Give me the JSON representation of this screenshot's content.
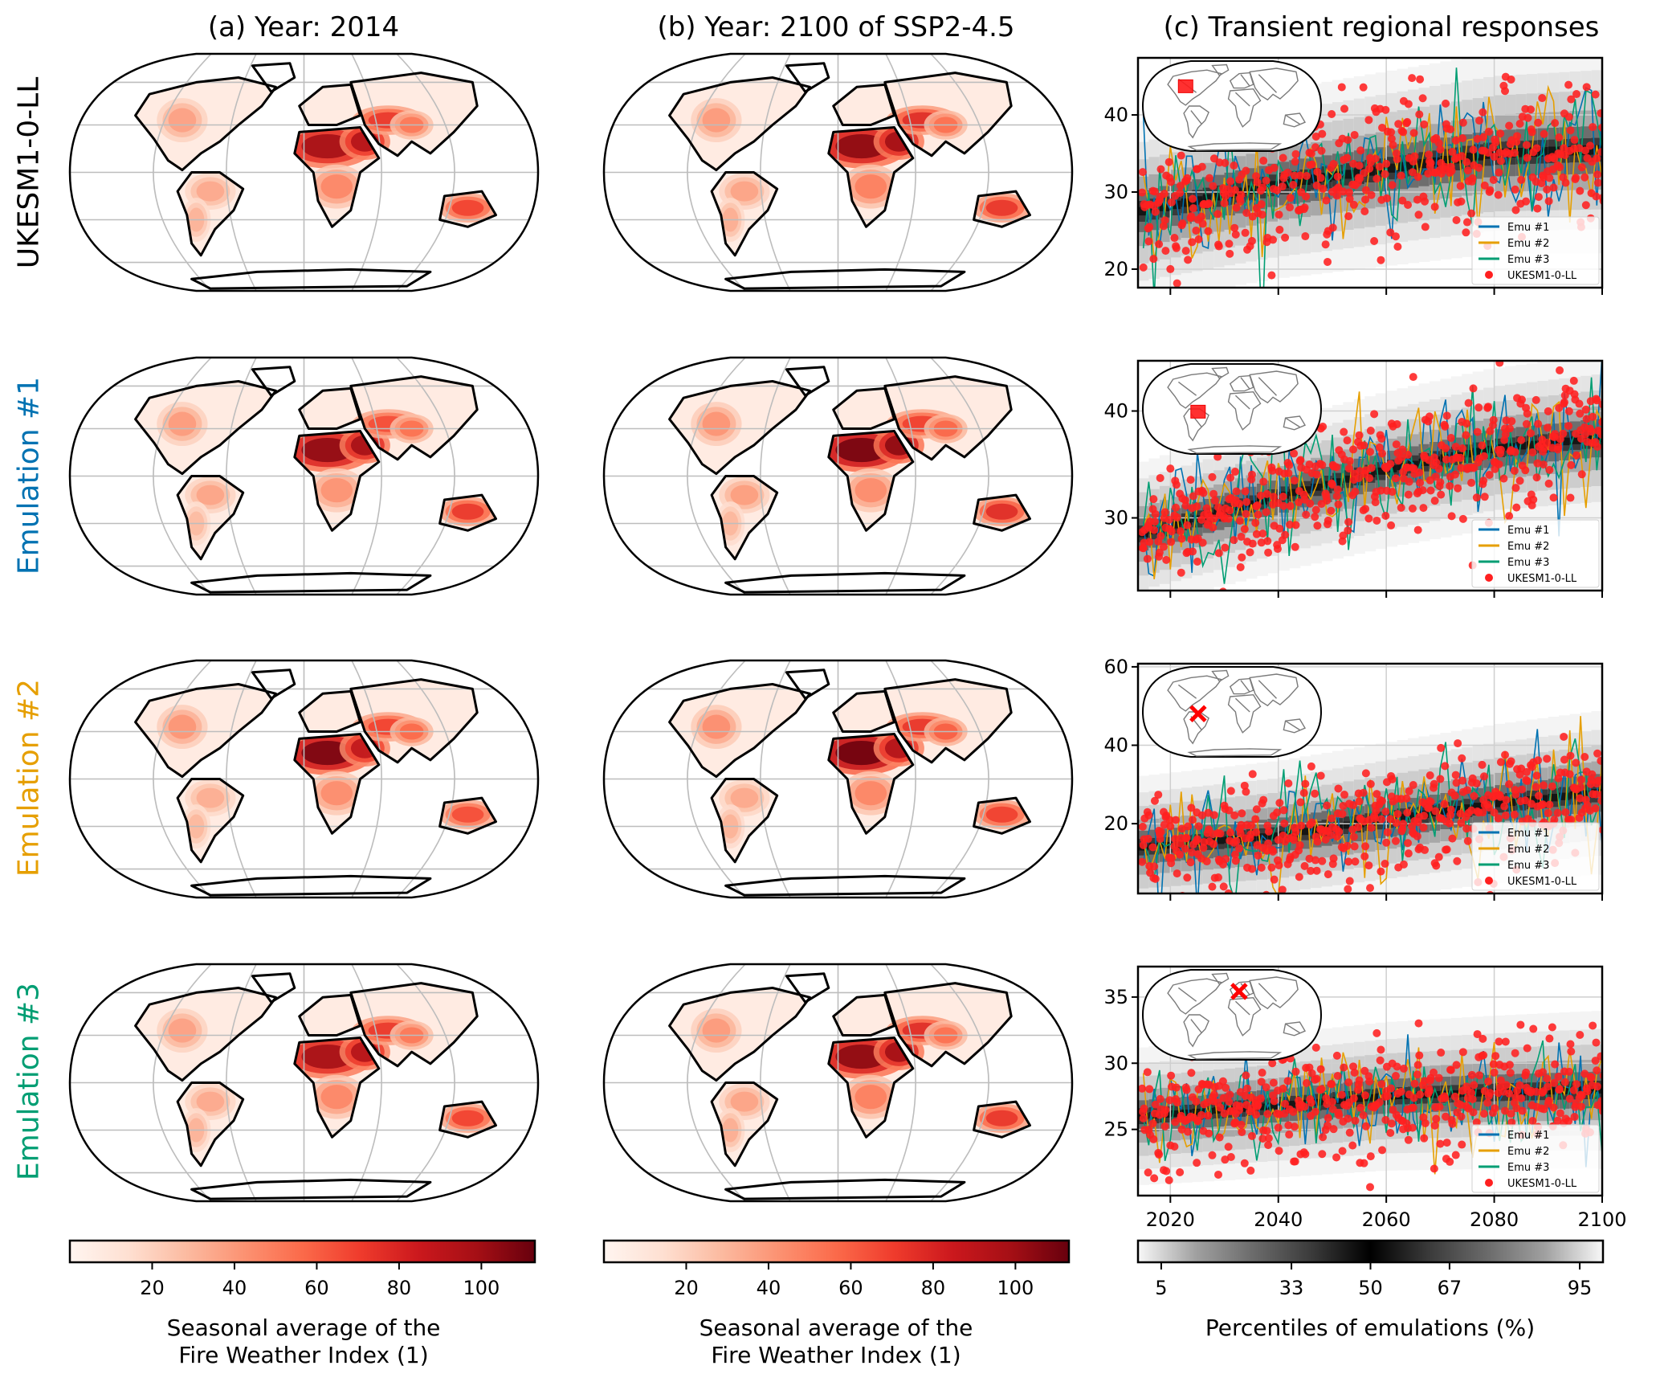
{
  "column_titles": {
    "a": "(a) Year: 2014",
    "b": "(b) Year: 2100 of SSP2-4.5",
    "c": "(c) Transient regional responses"
  },
  "row_labels": [
    {
      "text": "UKESM1-0-LL",
      "color": "#000000"
    },
    {
      "text": "Emulation #1",
      "color": "#0072B2"
    },
    {
      "text": "Emulation #2",
      "color": "#E69F00"
    },
    {
      "text": "Emulation #3",
      "color": "#009E73"
    }
  ],
  "map_colorbar": {
    "label_line1": "Seasonal average of the",
    "label_line2": "Fire Weather Index (1)",
    "ticks": [
      "20",
      "40",
      "60",
      "80",
      "100"
    ],
    "tick_values": [
      20,
      40,
      60,
      80,
      100
    ],
    "range": [
      0,
      113
    ],
    "colormap": "Reds"
  },
  "percentile_colorbar": {
    "label": "Percentiles of emulations (%)",
    "ticks": [
      "5",
      "33",
      "50",
      "67",
      "95"
    ],
    "tick_values": [
      5,
      33,
      50,
      67,
      95
    ],
    "range": [
      0,
      100
    ],
    "colormap": "gray (light at tails, black at median)"
  },
  "legend": {
    "items": [
      {
        "label": "Emu #1",
        "color": "#0072B2",
        "type": "line"
      },
      {
        "label": "Emu #2",
        "color": "#E69F00",
        "type": "line"
      },
      {
        "label": "Emu #3",
        "color": "#009E73",
        "type": "line"
      },
      {
        "label": "UKESM1-0-LL",
        "color": "#FF2020",
        "type": "marker"
      }
    ]
  },
  "chart_data": [
    {
      "type": "line",
      "title": "(c) Transient regional responses — row 1 (UKESM1-0-LL)",
      "region_marker": "square",
      "region": "western North America",
      "xlabel": "",
      "ylabel": "",
      "xlim": [
        2014,
        2100
      ],
      "ylim": [
        17.6,
        47.4
      ],
      "x_ticks": [
        2020,
        2040,
        2060,
        2080,
        2100
      ],
      "y_ticks": [
        20,
        30,
        40
      ],
      "grid": true,
      "legend_position": "bottom-right",
      "median_trend": {
        "x": [
          2015,
          2040,
          2060,
          2080,
          2100
        ],
        "y": [
          27.5,
          31,
          33,
          35,
          35.5
        ]
      },
      "spread_sd": 4.5,
      "series": [
        {
          "name": "Emu #1",
          "x_range": [
            2015,
            2100
          ],
          "trend_from_median": true
        },
        {
          "name": "Emu #2",
          "x_range": [
            2015,
            2100
          ],
          "trend_from_median": true
        },
        {
          "name": "Emu #3",
          "x_range": [
            2015,
            2100
          ],
          "trend_from_median": true
        },
        {
          "name": "UKESM1-0-LL",
          "x_range": [
            2015,
            2100
          ],
          "trend_from_median": true,
          "points_per_year": 5
        }
      ]
    },
    {
      "type": "line",
      "title": "(c) Transient regional responses — row 2 (Emulation #1)",
      "region_marker": "square",
      "region": "central South America",
      "xlim": [
        2014,
        2100
      ],
      "ylim": [
        23.2,
        44.7
      ],
      "x_ticks": [
        2020,
        2040,
        2060,
        2080,
        2100
      ],
      "y_ticks": [
        30,
        40
      ],
      "grid": true,
      "legend_position": "bottom-right",
      "median_trend": {
        "x": [
          2015,
          2040,
          2060,
          2080,
          2100
        ],
        "y": [
          28.5,
          32,
          34.5,
          36.5,
          37.5
        ]
      },
      "spread_sd": 2.6,
      "series": [
        {
          "name": "Emu #1",
          "x_range": [
            2015,
            2100
          ],
          "trend_from_median": true
        },
        {
          "name": "Emu #2",
          "x_range": [
            2015,
            2100
          ],
          "trend_from_median": true
        },
        {
          "name": "Emu #3",
          "x_range": [
            2015,
            2100
          ],
          "trend_from_median": true
        },
        {
          "name": "UKESM1-0-LL",
          "x_range": [
            2015,
            2100
          ],
          "trend_from_median": true,
          "points_per_year": 5
        }
      ]
    },
    {
      "type": "line",
      "title": "(c) Transient regional responses — row 3 (Emulation #2)",
      "region_marker": "x",
      "region": "northern South America",
      "xlim": [
        2014,
        2100
      ],
      "ylim": [
        2.2,
        60.8
      ],
      "x_ticks": [
        2020,
        2040,
        2060,
        2080,
        2100
      ],
      "y_ticks": [
        20,
        40,
        60
      ],
      "grid": true,
      "legend_position": "bottom-right",
      "median_trend": {
        "x": [
          2015,
          2040,
          2060,
          2080,
          2100
        ],
        "y": [
          14,
          17,
          21,
          25,
          28
        ]
      },
      "spread_sd": 7,
      "series": [
        {
          "name": "Emu #1",
          "x_range": [
            2015,
            2100
          ],
          "trend_from_median": true
        },
        {
          "name": "Emu #2",
          "x_range": [
            2015,
            2100
          ],
          "trend_from_median": true
        },
        {
          "name": "Emu #3",
          "x_range": [
            2015,
            2100
          ],
          "trend_from_median": true
        },
        {
          "name": "UKESM1-0-LL",
          "x_range": [
            2015,
            2100
          ],
          "trend_from_median": true,
          "points_per_year": 5
        }
      ]
    },
    {
      "type": "line",
      "title": "(c) Transient regional responses — row 4 (Emulation #3)",
      "region_marker": "x",
      "region": "western Europe / Mediterranean",
      "xlim": [
        2014,
        2100
      ],
      "ylim": [
        20.0,
        37.3
      ],
      "x_ticks": [
        2020,
        2040,
        2060,
        2080,
        2100
      ],
      "y_ticks": [
        25,
        30,
        35
      ],
      "grid": true,
      "legend_position": "bottom-right",
      "median_trend": {
        "x": [
          2015,
          2040,
          2060,
          2080,
          2100
        ],
        "y": [
          26,
          26.8,
          27.5,
          27.8,
          28
        ]
      },
      "spread_sd": 2,
      "series": [
        {
          "name": "Emu #1",
          "x_range": [
            2015,
            2100
          ],
          "trend_from_median": true
        },
        {
          "name": "Emu #2",
          "x_range": [
            2015,
            2100
          ],
          "trend_from_median": true
        },
        {
          "name": "Emu #3",
          "x_range": [
            2015,
            2100
          ],
          "trend_from_median": true
        },
        {
          "name": "UKESM1-0-LL",
          "x_range": [
            2015,
            2100
          ],
          "trend_from_median": true,
          "points_per_year": 5
        }
      ]
    }
  ],
  "maps": {
    "rows": [
      "UKESM1-0-LL",
      "Emulation #1",
      "Emulation #2",
      "Emulation #3"
    ],
    "columns": [
      "(a) Year: 2014",
      "(b) Year: 2100 of SSP2-4.5"
    ],
    "variable": "Seasonal average of the Fire Weather Index",
    "hotspots": [
      {
        "name": "Sahara",
        "value": 105
      },
      {
        "name": "Arabian Peninsula",
        "value": 95
      },
      {
        "name": "Central Asia",
        "value": 70
      },
      {
        "name": "Australia",
        "value": 70
      },
      {
        "name": "Southern Africa",
        "value": 45
      },
      {
        "name": "Western North America",
        "value": 40
      },
      {
        "name": "South America (east)",
        "value": 35
      }
    ]
  }
}
